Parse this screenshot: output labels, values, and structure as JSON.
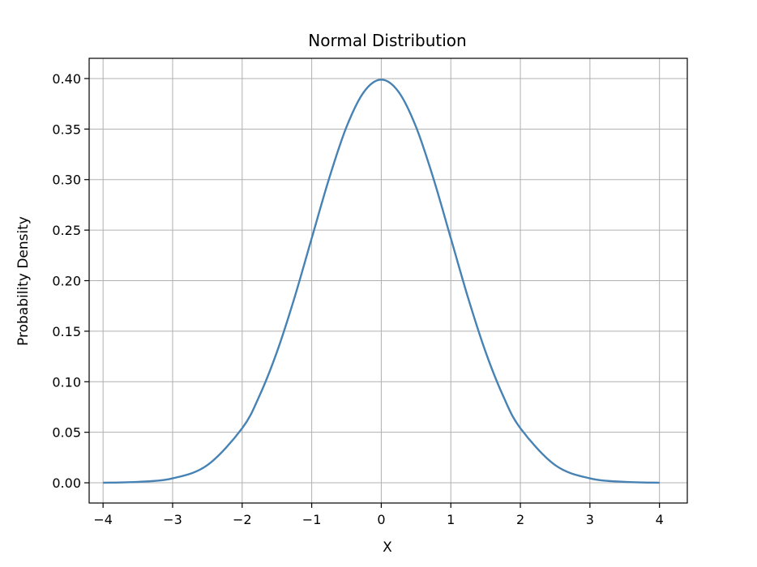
{
  "chart_data": {
    "type": "line",
    "title": "Normal Distribution",
    "xlabel": "X",
    "ylabel": "Probability Density",
    "xlim": [
      -4.2,
      4.4
    ],
    "ylim": [
      -0.02,
      0.42
    ],
    "grid": true,
    "xticks": [
      -4,
      -3,
      -2,
      -1,
      0,
      1,
      2,
      3,
      4
    ],
    "xtick_labels": [
      "−4",
      "−3",
      "−2",
      "−1",
      "0",
      "1",
      "2",
      "3",
      "4"
    ],
    "yticks": [
      0.0,
      0.05,
      0.1,
      0.15,
      0.2,
      0.25,
      0.3,
      0.35,
      0.4
    ],
    "ytick_labels": [
      "0.00",
      "0.05",
      "0.10",
      "0.15",
      "0.20",
      "0.25",
      "0.30",
      "0.35",
      "0.40"
    ],
    "series": [
      {
        "color": "#4682b4",
        "x": [
          -4.0,
          -3.5,
          -3.0,
          -2.5,
          -2.0,
          -1.75,
          -1.5,
          -1.25,
          -1.0,
          -0.75,
          -0.5,
          -0.25,
          0.0,
          0.25,
          0.5,
          0.75,
          1.0,
          1.25,
          1.5,
          1.75,
          2.0,
          2.5,
          3.0,
          3.5,
          4.0
        ],
        "y": [
          0.0001,
          0.0009,
          0.0044,
          0.0175,
          0.054,
          0.0863,
          0.1295,
          0.1826,
          0.242,
          0.3011,
          0.3521,
          0.3867,
          0.3989,
          0.3867,
          0.3521,
          0.3011,
          0.242,
          0.1826,
          0.1295,
          0.0863,
          0.054,
          0.0175,
          0.0044,
          0.0009,
          0.0001
        ]
      }
    ]
  }
}
